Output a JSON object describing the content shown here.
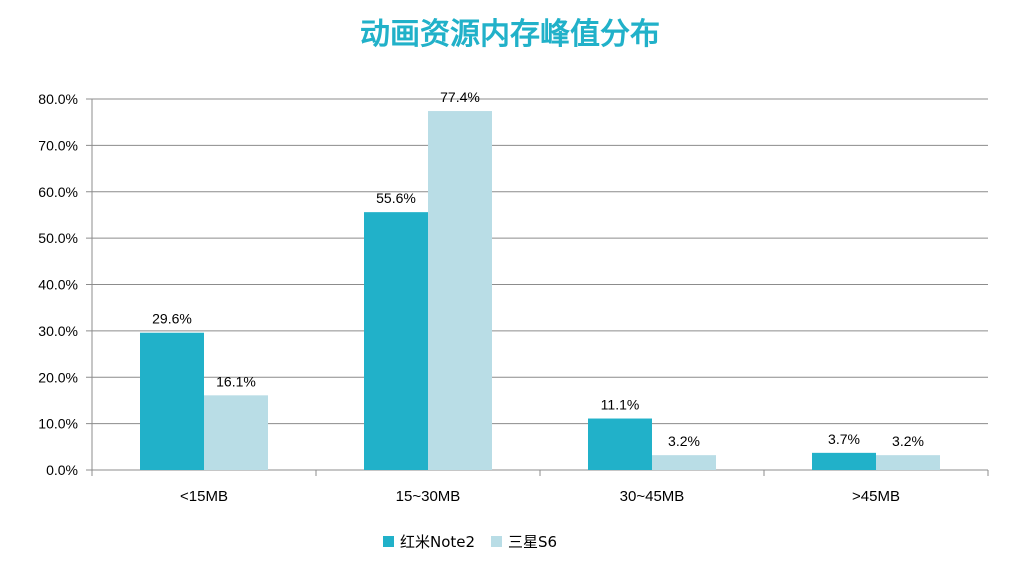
{
  "chart_data": {
    "type": "bar",
    "title": "动画资源内存峰值分布",
    "categories": [
      "<15MB",
      "15~30MB",
      "30~45MB",
      ">45MB"
    ],
    "series": [
      {
        "name": "红米Note2",
        "values": [
          29.6,
          55.6,
          11.1,
          3.7
        ],
        "color": "#21b1c9"
      },
      {
        "name": "三星S6",
        "values": [
          16.1,
          77.4,
          3.2,
          3.2
        ],
        "color": "#b9dde6"
      }
    ],
    "ylim": [
      0,
      80
    ],
    "yticks": [
      "0.0%",
      "10.0%",
      "20.0%",
      "30.0%",
      "40.0%",
      "50.0%",
      "60.0%",
      "70.0%",
      "80.0%"
    ],
    "data_labels": [
      [
        "29.6%",
        "55.6%",
        "11.1%",
        "3.7%"
      ],
      [
        "16.1%",
        "77.4%",
        "3.2%",
        "3.2%"
      ]
    ],
    "grid": true,
    "legend_position": "bottom",
    "title_color": "#21b1c9"
  }
}
